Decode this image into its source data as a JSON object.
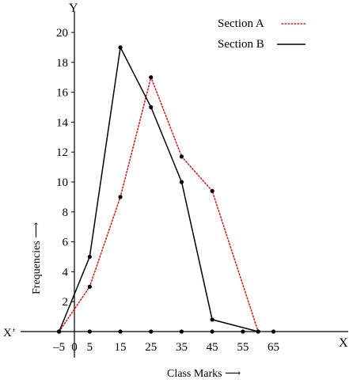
{
  "chart_data": {
    "type": "line",
    "title": "",
    "xlabel": "Class Marks ⟶",
    "ylabel": "Frequencies ⟶",
    "x_axis_label": "X",
    "x_axis_neg_label": "X’",
    "y_axis_label": "Y",
    "xlim": [
      -5,
      65
    ],
    "ylim": [
      0,
      21
    ],
    "x_ticks": [
      -5,
      0,
      5,
      15,
      25,
      35,
      45,
      55,
      65
    ],
    "x_tick_labels": [
      "–5",
      "0",
      "5",
      "15",
      "25",
      "35",
      "45",
      "55",
      "65"
    ],
    "y_ticks": [
      2,
      4,
      6,
      8,
      10,
      12,
      14,
      16,
      18,
      20
    ],
    "y_tick_labels": [
      "2",
      "4",
      "6",
      "8",
      "10",
      "12",
      "14",
      "16",
      "18",
      "20"
    ],
    "axis_dots_x": [
      -5,
      5,
      15,
      25,
      35,
      45,
      55,
      65
    ],
    "legend_position": "top-right",
    "series": [
      {
        "name": "Section  A",
        "style": "dotted",
        "color": "#e0201c",
        "points": [
          [
            -5,
            0
          ],
          [
            5,
            3
          ],
          [
            15,
            9
          ],
          [
            25,
            17
          ],
          [
            35,
            11.7
          ],
          [
            45,
            9.4
          ],
          [
            60,
            0
          ]
        ]
      },
      {
        "name": "Section B",
        "style": "solid",
        "color": "#000000",
        "points": [
          [
            -5,
            0
          ],
          [
            5,
            5
          ],
          [
            15,
            19
          ],
          [
            25,
            15
          ],
          [
            35,
            10
          ],
          [
            45,
            0.8
          ],
          [
            60,
            0
          ]
        ]
      }
    ]
  }
}
